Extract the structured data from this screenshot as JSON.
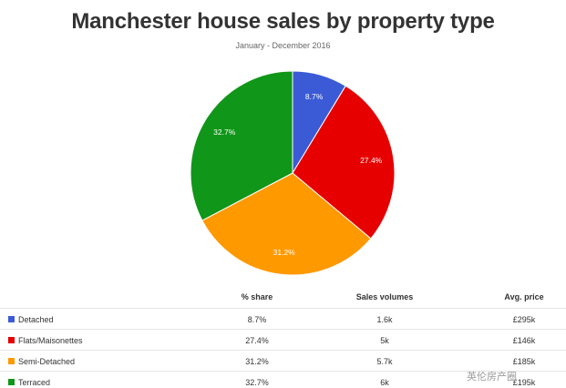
{
  "chart_data": {
    "type": "pie",
    "title": "Manchester house sales by property type",
    "subtitle": "January - December 2016",
    "slices": [
      {
        "label": "Detached",
        "value": 8.7,
        "label_text": "8.7%",
        "color": "#3b5bd6"
      },
      {
        "label": "Flats/Maisonettes",
        "value": 27.4,
        "label_text": "27.4%",
        "color": "#e60000"
      },
      {
        "label": "Semi-Detached",
        "value": 31.2,
        "label_text": "31.2%",
        "color": "#ff9900"
      },
      {
        "label": "Terraced",
        "value": 32.7,
        "label_text": "32.7%",
        "color": "#109618"
      }
    ],
    "table": {
      "headers": [
        "",
        "% share",
        "Sales volumes",
        "Avg. price"
      ],
      "rows": [
        {
          "category": "Detached",
          "share": "8.7%",
          "volume": "1.6k",
          "price": "£295k",
          "color": "#3b5bd6"
        },
        {
          "category": "Flats/Maisonettes",
          "share": "27.4%",
          "volume": "5k",
          "price": "£146k",
          "color": "#e60000"
        },
        {
          "category": "Semi-Detached",
          "share": "31.2%",
          "volume": "5.7k",
          "price": "£185k",
          "color": "#ff9900"
        },
        {
          "category": "Terraced",
          "share": "32.7%",
          "volume": "6k",
          "price": "£195k",
          "color": "#109618"
        }
      ]
    }
  },
  "watermark": "英伦房产圈"
}
